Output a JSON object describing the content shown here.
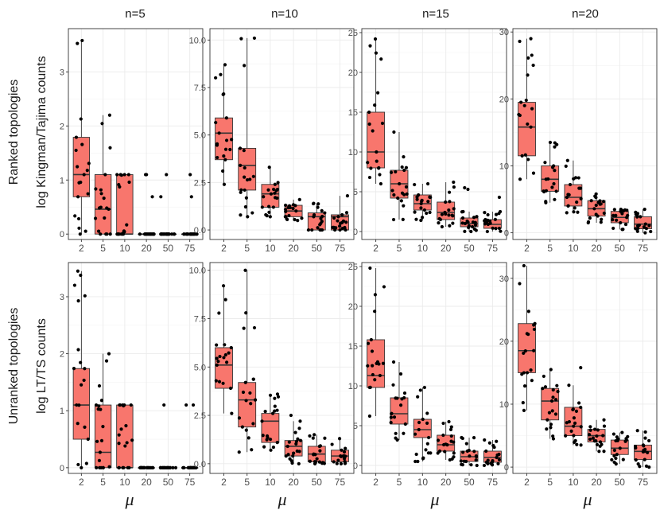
{
  "figure": {
    "column_titles": [
      "n=5",
      "n=10",
      "n=15",
      "n=20"
    ],
    "row_titles": [
      [
        "Ranked topologies",
        "log Kingman/Tajima counts"
      ],
      [
        "Unranked topologies",
        "log LT/TS counts"
      ]
    ],
    "xlabel": "μ",
    "categories": [
      "2",
      "5",
      "10",
      "20",
      "50",
      "75"
    ],
    "colors": {
      "box_fill": "#F8766D",
      "box_line": "#333333",
      "point": "#000000",
      "grid": "#ebebeb",
      "panel_border": "#333333"
    }
  },
  "chart_data": [
    {
      "type": "box",
      "row": "Ranked topologies",
      "n": "n=5",
      "title": "n=5",
      "ylabel": "log Kingman/Tajima counts",
      "categories": [
        "2",
        "5",
        "10",
        "20",
        "50",
        "75"
      ],
      "ylim": [
        -0.1,
        3.8
      ],
      "yticks": [
        0,
        1,
        2,
        3
      ],
      "boxes": [
        {
          "q1": 0.69,
          "median": 1.1,
          "q3": 1.79,
          "lower": 0,
          "upper": 3.58
        },
        {
          "q1": 0,
          "median": 0.46,
          "q3": 1.1,
          "lower": 0,
          "upper": 2.2
        },
        {
          "q1": 0,
          "median": 0,
          "q3": 1.1,
          "lower": 0,
          "upper": 1.1
        },
        {
          "q1": 0,
          "median": 0,
          "q3": 0,
          "lower": 0,
          "upper": 0
        },
        {
          "q1": 0,
          "median": 0,
          "q3": 0,
          "lower": 0,
          "upper": 0
        },
        {
          "q1": 0,
          "median": 0,
          "q3": 0,
          "lower": 0,
          "upper": 0
        }
      ],
      "outliers": [
        [],
        [],
        [],
        [
          1.1,
          1.1,
          0.69
        ],
        [
          1.1,
          0.69
        ],
        [
          1.1,
          0.69
        ]
      ]
    },
    {
      "type": "box",
      "row": "Ranked topologies",
      "n": "n=10",
      "title": "n=10",
      "ylabel": "log Kingman/Tajima counts",
      "categories": [
        "2",
        "5",
        "10",
        "20",
        "50",
        "75"
      ],
      "ylim": [
        -0.5,
        10.6
      ],
      "yticks": [
        0,
        2.5,
        5,
        7.5,
        10
      ],
      "boxes": [
        {
          "q1": 3.7,
          "median": 5.1,
          "q3": 5.9,
          "lower": 2.4,
          "upper": 8.7
        },
        {
          "q1": 2.1,
          "median": 3.4,
          "q3": 4.3,
          "lower": 0.7,
          "upper": 10.1
        },
        {
          "q1": 1.2,
          "median": 1.9,
          "q3": 2.4,
          "lower": 0.7,
          "upper": 3.3
        },
        {
          "q1": 0.7,
          "median": 1.0,
          "q3": 1.3,
          "lower": 0.5,
          "upper": 1.6
        },
        {
          "q1": 0,
          "median": 0.7,
          "q3": 0.9,
          "lower": 0,
          "upper": 1.4
        },
        {
          "q1": 0,
          "median": 0.7,
          "q3": 0.8,
          "lower": 0,
          "upper": 1.8
        }
      ],
      "outliers": [
        [],
        [],
        [],
        [],
        [],
        []
      ]
    },
    {
      "type": "box",
      "row": "Ranked topologies",
      "n": "n=15",
      "title": "n=15",
      "ylabel": "log Kingman/Tajima counts",
      "categories": [
        "2",
        "5",
        "10",
        "20",
        "50",
        "75"
      ],
      "ylim": [
        -1,
        25.5
      ],
      "yticks": [
        0,
        5,
        10,
        15,
        20,
        25
      ],
      "boxes": [
        {
          "q1": 8.0,
          "median": 10.0,
          "q3": 15.0,
          "lower": 6.0,
          "upper": 24.2
        },
        {
          "q1": 4.2,
          "median": 6.0,
          "q3": 7.7,
          "lower": 1.5,
          "upper": 12.5
        },
        {
          "q1": 2.7,
          "median": 3.5,
          "q3": 4.6,
          "lower": 1.4,
          "upper": 6.0
        },
        {
          "q1": 1.5,
          "median": 2.4,
          "q3": 3.7,
          "lower": 0.6,
          "upper": 6.2
        },
        {
          "q1": 0.6,
          "median": 1.0,
          "q3": 1.7,
          "lower": 0,
          "upper": 2.5
        },
        {
          "q1": 0.4,
          "median": 0.9,
          "q3": 1.5,
          "lower": 0,
          "upper": 2.5
        }
      ],
      "outliers": [
        [],
        [],
        [],
        [],
        [
          5.5,
          5.3
        ],
        [
          4.3
        ]
      ]
    },
    {
      "type": "box",
      "row": "Ranked topologies",
      "n": "n=20",
      "title": "n=20",
      "ylabel": "log Kingman/Tajima counts",
      "categories": [
        "2",
        "5",
        "10",
        "20",
        "50",
        "75"
      ],
      "ylim": [
        -1,
        30.5
      ],
      "yticks": [
        0,
        10,
        20,
        30
      ],
      "boxes": [
        {
          "q1": 11.5,
          "median": 15.8,
          "q3": 19.5,
          "lower": 8.0,
          "upper": 29.0
        },
        {
          "q1": 6.2,
          "median": 8.0,
          "q3": 10.0,
          "lower": 4.5,
          "upper": 13.5
        },
        {
          "q1": 4.0,
          "median": 5.3,
          "q3": 7.2,
          "lower": 3.0,
          "upper": 10.8
        },
        {
          "q1": 2.5,
          "median": 3.6,
          "q3": 4.8,
          "lower": 1.5,
          "upper": 5.8
        },
        {
          "q1": 1.5,
          "median": 2.3,
          "q3": 3.2,
          "lower": 0.5,
          "upper": 3.5
        },
        {
          "q1": 0.6,
          "median": 1.3,
          "q3": 2.4,
          "lower": 0,
          "upper": 3.5
        }
      ],
      "outliers": [
        [],
        [],
        [],
        [],
        [],
        []
      ]
    },
    {
      "type": "box",
      "row": "Unranked topologies",
      "n": "n=5",
      "title": "n=5",
      "ylabel": "log LT/TS counts",
      "categories": [
        "2",
        "5",
        "10",
        "20",
        "50",
        "75"
      ],
      "ylim": [
        -0.1,
        3.6
      ],
      "yticks": [
        0,
        1,
        2,
        3
      ],
      "boxes": [
        {
          "q1": 0.5,
          "median": 1.1,
          "q3": 1.74,
          "lower": 0,
          "upper": 3.45
        },
        {
          "q1": 0,
          "median": 0.27,
          "q3": 1.1,
          "lower": 0,
          "upper": 2.0
        },
        {
          "q1": 0,
          "median": 0,
          "q3": 1.1,
          "lower": 0,
          "upper": 1.1
        },
        {
          "q1": 0,
          "median": 0,
          "q3": 0,
          "lower": 0,
          "upper": 0
        },
        {
          "q1": 0,
          "median": 0,
          "q3": 0,
          "lower": 0,
          "upper": 0
        },
        {
          "q1": 0,
          "median": 0,
          "q3": 0,
          "lower": 0,
          "upper": 0
        }
      ],
      "outliers": [
        [],
        [],
        [],
        [],
        [
          1.1
        ],
        [
          1.1,
          1.1
        ]
      ]
    },
    {
      "type": "box",
      "row": "Unranked topologies",
      "n": "n=10",
      "title": "n=10",
      "ylabel": "log LT/TS counts",
      "categories": [
        "2",
        "5",
        "10",
        "20",
        "50",
        "75"
      ],
      "ylim": [
        -0.5,
        10.4
      ],
      "yticks": [
        0,
        2.5,
        5,
        7.5,
        10
      ],
      "boxes": [
        {
          "q1": 3.9,
          "median": 5.1,
          "q3": 6.0,
          "lower": 2.6,
          "upper": 9.2
        },
        {
          "q1": 1.9,
          "median": 3.3,
          "q3": 4.2,
          "lower": 0.6,
          "upper": 10.0
        },
        {
          "q1": 1.1,
          "median": 2.2,
          "q3": 2.6,
          "lower": 0.7,
          "upper": 3.6
        },
        {
          "q1": 0.4,
          "median": 0.9,
          "q3": 1.2,
          "lower": 0,
          "upper": 2.2
        },
        {
          "q1": 0.1,
          "median": 0.5,
          "q3": 0.9,
          "lower": 0,
          "upper": 1.5
        },
        {
          "q1": 0.1,
          "median": 0.4,
          "q3": 0.7,
          "lower": 0,
          "upper": 1.3
        }
      ],
      "outliers": [
        [],
        [],
        [],
        [
          2.5
        ],
        [],
        []
      ]
    },
    {
      "type": "box",
      "row": "Unranked topologies",
      "n": "n=15",
      "title": "n=15",
      "ylabel": "log LT/TS counts",
      "categories": [
        "2",
        "5",
        "10",
        "20",
        "50",
        "75"
      ],
      "ylim": [
        -1,
        25.5
      ],
      "yticks": [
        0,
        5,
        10,
        15,
        20,
        25
      ],
      "boxes": [
        {
          "q1": 9.8,
          "median": 11.3,
          "q3": 15.8,
          "lower": 6.2,
          "upper": 24.8
        },
        {
          "q1": 5.2,
          "median": 6.5,
          "q3": 8.5,
          "lower": 3.2,
          "upper": 13.0
        },
        {
          "q1": 3.5,
          "median": 4.5,
          "q3": 5.8,
          "lower": 0.5,
          "upper": 9.8
        },
        {
          "q1": 1.8,
          "median": 2.6,
          "q3": 3.8,
          "lower": 0.7,
          "upper": 5.5
        },
        {
          "q1": 0.5,
          "median": 1.1,
          "q3": 1.8,
          "lower": 0,
          "upper": 3.5
        },
        {
          "q1": 0.4,
          "median": 1.0,
          "q3": 1.8,
          "lower": 0,
          "upper": 3.2
        }
      ],
      "outliers": [
        [],
        [],
        [],
        [],
        [],
        []
      ]
    },
    {
      "type": "box",
      "row": "Unranked topologies",
      "n": "n=20",
      "title": "n=20",
      "ylabel": "log LT/TS counts",
      "categories": [
        "2",
        "5",
        "10",
        "20",
        "50",
        "75"
      ],
      "ylim": [
        -1,
        32.5
      ],
      "yticks": [
        0,
        10,
        20,
        30
      ],
      "boxes": [
        {
          "q1": 15.0,
          "median": 18.5,
          "q3": 22.8,
          "lower": 9.0,
          "upper": 32.0
        },
        {
          "q1": 7.5,
          "median": 10.5,
          "q3": 12.5,
          "lower": 4.5,
          "upper": 15.5
        },
        {
          "q1": 5.0,
          "median": 6.5,
          "q3": 9.5,
          "lower": 3.5,
          "upper": 13.0
        },
        {
          "q1": 4.0,
          "median": 5.0,
          "q3": 6.0,
          "lower": 2.5,
          "upper": 7.5
        },
        {
          "q1": 2.0,
          "median": 3.0,
          "q3": 4.3,
          "lower": 0.5,
          "upper": 5.5
        },
        {
          "q1": 1.2,
          "median": 2.5,
          "q3": 3.5,
          "lower": 0,
          "upper": 5.8
        }
      ],
      "outliers": [
        [],
        [],
        [
          15.8
        ],
        [],
        [],
        []
      ]
    }
  ]
}
